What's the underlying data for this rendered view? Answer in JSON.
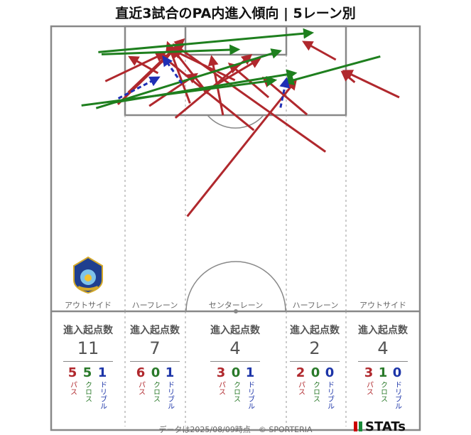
{
  "title": "直近3試合のPA内進入傾向 | 5レーン別",
  "lanes": [
    {
      "label": "アウトサイド",
      "stat_head": "進入起点数",
      "total": "11",
      "pass": "5",
      "cross": "5",
      "dribble": "1"
    },
    {
      "label": "ハーフレーン",
      "stat_head": "進入起点数",
      "total": "7",
      "pass": "6",
      "cross": "0",
      "dribble": "1"
    },
    {
      "label": "センターレーン",
      "stat_head": "進入起点数",
      "total": "4",
      "pass": "3",
      "cross": "0",
      "dribble": "1"
    },
    {
      "label": "ハーフレーン",
      "stat_head": "進入起点数",
      "total": "2",
      "pass": "2",
      "cross": "0",
      "dribble": "0"
    },
    {
      "label": "アウトサイド",
      "stat_head": "進入起点数",
      "total": "4",
      "pass": "3",
      "cross": "1",
      "dribble": "0"
    }
  ],
  "type_labels": {
    "pass": "パス",
    "cross": "クロス",
    "dribble": "ドリブル"
  },
  "colors": {
    "pass": "#b0282d",
    "cross": "#1e7f1e",
    "dribble": "#1f2fb5",
    "pitch_line": "#888888"
  },
  "footer": "データは2025/08/09時点　© SPORTERIA",
  "logo_text": "STATs",
  "chart_data": {
    "type": "scatter",
    "description_units": "pitch coordinates: x = 0 (left touchline) to 68 (right touchline); y = distance from goal line in metres",
    "penalty_area": {
      "x": [
        13.84,
        54.16
      ],
      "depth": 16.5
    },
    "goal_area": {
      "x": [
        24.84,
        43.16
      ],
      "depth": 5.5
    },
    "lane_boundaries_x": [
      13.84,
      24.84,
      43.16,
      54.16
    ],
    "arrows": [
      {
        "kind": "pass",
        "from": [
          14.2,
          12.3
        ],
        "to": [
          24.4,
          2.5
        ]
      },
      {
        "kind": "pass",
        "from": [
          10.0,
          10.2
        ],
        "to": [
          20.9,
          5.0
        ]
      },
      {
        "kind": "pass",
        "from": [
          12.3,
          14.5
        ],
        "to": [
          23.3,
          3.8
        ]
      },
      {
        "kind": "pass",
        "from": [
          28.9,
          12.5
        ],
        "to": [
          22.4,
          4.2
        ]
      },
      {
        "kind": "pass",
        "from": [
          18.1,
          14.8
        ],
        "to": [
          26.8,
          8.9
        ]
      },
      {
        "kind": "pass",
        "from": [
          19.7,
          8.7
        ],
        "to": [
          14.5,
          5.7
        ]
      },
      {
        "kind": "pass",
        "from": [
          25.6,
          14.3
        ],
        "to": [
          21.5,
          3.1
        ]
      },
      {
        "kind": "pass",
        "from": [
          31.7,
          16.5
        ],
        "to": [
          29.6,
          5.7
        ]
      },
      {
        "kind": "pass",
        "from": [
          33.9,
          10.0
        ],
        "to": [
          22.4,
          4.4
        ]
      },
      {
        "kind": "pass",
        "from": [
          40.1,
          13.2
        ],
        "to": [
          32.9,
          7.0
        ]
      },
      {
        "kind": "pass",
        "from": [
          22.9,
          17.0
        ],
        "to": [
          36.8,
          5.4
        ]
      },
      {
        "kind": "pass",
        "from": [
          28.2,
          12.2
        ],
        "to": [
          38.4,
          6.1
        ]
      },
      {
        "kind": "pass",
        "from": [
          47.2,
          16.4
        ],
        "to": [
          39.2,
          9.6
        ]
      },
      {
        "kind": "pass",
        "from": [
          50.6,
          23.3
        ],
        "to": [
          22.7,
          3.4
        ]
      },
      {
        "kind": "pass",
        "from": [
          37.4,
          19.3
        ],
        "to": [
          20.1,
          5.2
        ]
      },
      {
        "kind": "pass",
        "from": [
          25.1,
          35.3
        ],
        "to": [
          45.1,
          10.1
        ]
      },
      {
        "kind": "pass",
        "from": [
          52.5,
          6.2
        ],
        "to": [
          46.6,
          2.9
        ]
      },
      {
        "kind": "pass",
        "from": [
          64.2,
          13.2
        ],
        "to": [
          54.0,
          8.3
        ]
      },
      {
        "kind": "pass",
        "from": [
          56.0,
          10.4
        ],
        "to": [
          53.7,
          8.5
        ]
      },
      {
        "kind": "cross",
        "from": [
          8.7,
          4.8
        ],
        "to": [
          48.1,
          1.2
        ]
      },
      {
        "kind": "cross",
        "from": [
          9.3,
          5.2
        ],
        "to": [
          34.5,
          4.3
        ]
      },
      {
        "kind": "cross",
        "from": [
          8.3,
          15.2
        ],
        "to": [
          42.2,
          4.6
        ]
      },
      {
        "kind": "cross",
        "from": [
          5.6,
          14.7
        ],
        "to": [
          41.3,
          10.0
        ]
      },
      {
        "kind": "cross",
        "from": [
          60.7,
          5.6
        ],
        "to": [
          43.2,
          10.4
        ]
      },
      {
        "kind": "cross",
        "from": [
          11.2,
          14.2
        ],
        "to": [
          45.0,
          8.7
        ]
      },
      {
        "kind": "dribble",
        "from": [
          24.1,
          10.6
        ],
        "to": [
          20.7,
          5.7
        ]
      },
      {
        "kind": "dribble",
        "from": [
          12.4,
          13.4
        ],
        "to": [
          19.8,
          9.5
        ]
      },
      {
        "kind": "dribble",
        "from": [
          42.3,
          15.1
        ],
        "to": [
          43.4,
          9.8
        ]
      }
    ]
  }
}
